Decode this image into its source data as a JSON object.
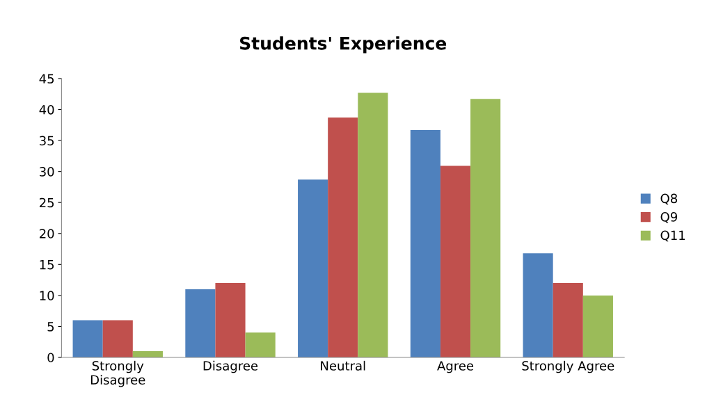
{
  "chart_data": {
    "type": "bar",
    "title": "Students' Experience",
    "categories": [
      "Strongly\nDisagree",
      "Disagree",
      "Neutral",
      "Agree",
      "Strongly Agree"
    ],
    "series": [
      {
        "name": "Q8",
        "color": "#4f81bd",
        "values": [
          6,
          11,
          28.7,
          36.7,
          16.8
        ]
      },
      {
        "name": "Q9",
        "color": "#c0504d",
        "values": [
          6,
          12,
          38.7,
          30.9,
          12
        ]
      },
      {
        "name": "Q11",
        "color": "#9bbb59",
        "values": [
          1,
          4,
          42.7,
          41.7,
          10
        ]
      }
    ],
    "ylim": [
      0,
      45
    ],
    "yticks": [
      0,
      5,
      10,
      15,
      20,
      25,
      30,
      35,
      40,
      45
    ],
    "grid": false,
    "legend": "right"
  }
}
